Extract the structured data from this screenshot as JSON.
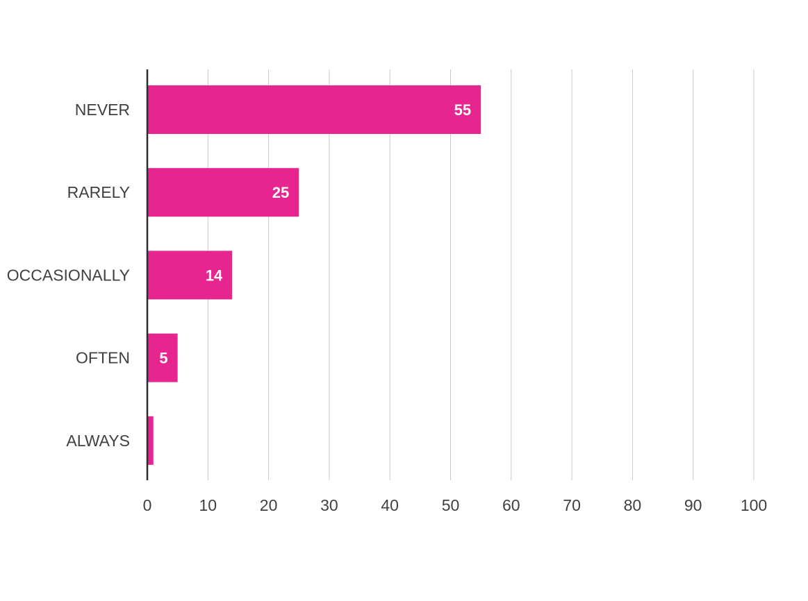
{
  "chart_data": {
    "type": "bar",
    "orientation": "horizontal",
    "categories": [
      "NEVER",
      "RARELY",
      "OCCASIONALLY",
      "OFTEN",
      "ALWAYS"
    ],
    "values": [
      55,
      25,
      14,
      5,
      1
    ],
    "data_labels": [
      "55",
      "25",
      "14",
      "5",
      ""
    ],
    "xlim": [
      0,
      100
    ],
    "xticks": [
      0,
      10,
      20,
      30,
      40,
      50,
      60,
      70,
      80,
      90,
      100
    ],
    "grid": true,
    "legend": "none",
    "bar_color": "#E6258F"
  }
}
